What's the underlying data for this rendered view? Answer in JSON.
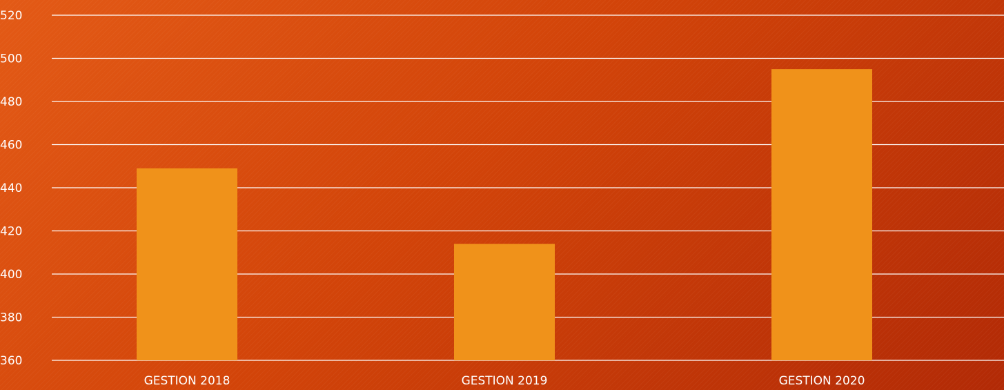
{
  "chart_data": {
    "type": "bar",
    "categories": [
      "GESTION 2018",
      "GESTION 2019",
      "GESTION 2020"
    ],
    "values": [
      449,
      414,
      495
    ],
    "title": "",
    "xlabel": "",
    "ylabel": "",
    "ylim": [
      360,
      520
    ],
    "yticks": [
      360,
      380,
      400,
      420,
      440,
      460,
      480,
      500,
      520
    ],
    "grid": true,
    "legend": "none",
    "colors": {
      "bar": "#F0921A",
      "grid": "#FFFFFF",
      "text": "#FFFFFF"
    }
  }
}
